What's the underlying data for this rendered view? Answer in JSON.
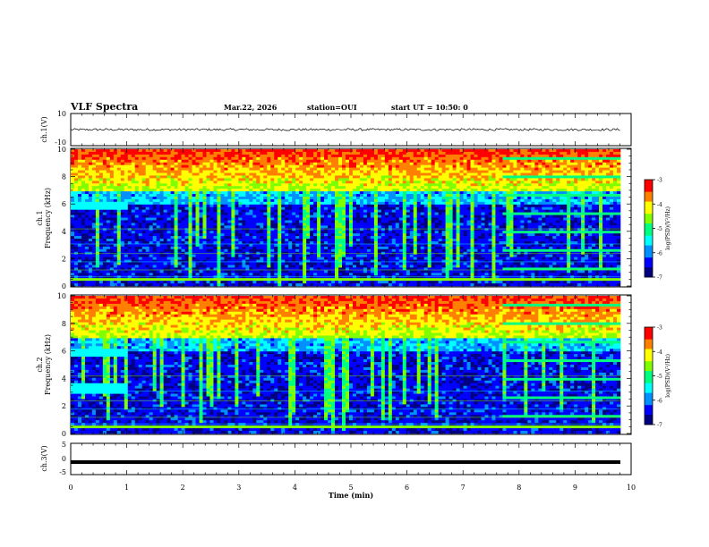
{
  "header": {
    "title": "VLF Spectra",
    "date": "Mar.22, 2026",
    "station": "station=OUI",
    "start": "start  UT =  10:50: 0"
  },
  "colors": {
    "colormap": [
      "#000080",
      "#0000ff",
      "#0090ff",
      "#00ffff",
      "#00ff80",
      "#80ff00",
      "#ffff00",
      "#ff8000",
      "#ff0000",
      "#ffffff"
    ],
    "waveform": "#000000"
  },
  "chart_data": [
    {
      "type": "line",
      "panel": "ch1-waveform",
      "ylabel": "ch.1(V)",
      "ylim": [
        -10,
        10
      ],
      "yticks": [
        "10",
        "-10"
      ],
      "xlim": [
        0,
        10
      ],
      "description_level": 0
    },
    {
      "type": "heatmap",
      "panel": "ch1-spectrogram",
      "ylabel": "ch.1\nFrequency (kHz)",
      "ylabel_line1": "ch.1",
      "ylabel_line2": "Frequency (kHz)",
      "ylim": [
        0,
        10
      ],
      "yticks": [
        "0",
        "2",
        "4",
        "6",
        "8",
        "10"
      ],
      "xlim": [
        0,
        10
      ],
      "colorbar": {
        "label": "log(PSD)(V²/Hz)",
        "range": [
          -7,
          -3
        ],
        "ticks": [
          "-3",
          "-4",
          "-5",
          "-6",
          "-7"
        ]
      }
    },
    {
      "type": "heatmap",
      "panel": "ch2-spectrogram",
      "ylabel_line1": "ch.2",
      "ylabel_line2": "Frequency (kHz)",
      "ylim": [
        0,
        10
      ],
      "yticks": [
        "0",
        "2",
        "4",
        "6",
        "8",
        "10"
      ],
      "xlim": [
        0,
        10
      ],
      "colorbar": {
        "label": "log(PSD)(V²/Hz)",
        "range": [
          -7,
          -3
        ],
        "ticks": [
          "-3",
          "-4",
          "-5",
          "-6",
          "-7"
        ]
      }
    },
    {
      "type": "line",
      "panel": "ch3-waveform",
      "ylabel": "ch.3(V)",
      "ylim": [
        -5,
        5
      ],
      "yticks": [
        "5",
        "0",
        "-5"
      ],
      "xlim": [
        0,
        10
      ],
      "xticks": [
        "0",
        "1",
        "2",
        "3",
        "4",
        "5",
        "6",
        "7",
        "8",
        "9",
        "10"
      ],
      "xlabel": "Time (min)",
      "level": -1.0
    }
  ]
}
